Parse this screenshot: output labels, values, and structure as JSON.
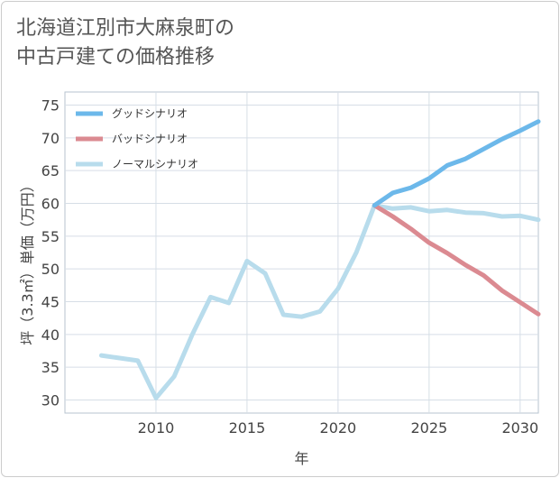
{
  "chart_data": {
    "type": "line",
    "title_lines": [
      "北海道江別市大麻泉町の",
      "中古戸建ての価格推移"
    ],
    "xlabel": "年",
    "ylabel": "坪（3.3㎡）単価（万円）",
    "xlim": [
      2005,
      2031
    ],
    "ylim": [
      28,
      77
    ],
    "xticks": [
      2010,
      2015,
      2020,
      2025,
      2030
    ],
    "yticks": [
      30,
      35,
      40,
      45,
      50,
      55,
      60,
      65,
      70,
      75
    ],
    "legend_position": "top-left",
    "series": [
      {
        "name": "グッドシナリオ",
        "color": "#6cb8ea",
        "x": [
          2022,
          2023,
          2024,
          2025,
          2026,
          2027,
          2028,
          2029,
          2030,
          2031
        ],
        "y": [
          59.7,
          61.6,
          62.4,
          63.8,
          65.8,
          66.8,
          68.3,
          69.8,
          71.1,
          72.5
        ]
      },
      {
        "name": "バッドシナリオ",
        "color": "#db8a91",
        "x": [
          2022,
          2023,
          2024,
          2025,
          2026,
          2027,
          2028,
          2029,
          2030,
          2031
        ],
        "y": [
          59.7,
          58.0,
          56.1,
          54.0,
          52.4,
          50.6,
          49.0,
          46.7,
          44.9,
          43.1
        ]
      },
      {
        "name": "ノーマルシナリオ",
        "color": "#b8dcec",
        "x": [
          2007,
          2008,
          2009,
          2010,
          2011,
          2012,
          2013,
          2014,
          2015,
          2016,
          2017,
          2018,
          2019,
          2020,
          2021,
          2022,
          2023,
          2024,
          2025,
          2026,
          2027,
          2028,
          2029,
          2030,
          2031
        ],
        "y": [
          36.8,
          36.4,
          36.0,
          30.3,
          33.6,
          40.0,
          45.7,
          44.8,
          51.2,
          49.3,
          43.0,
          42.7,
          43.5,
          47.0,
          52.5,
          59.7,
          59.2,
          59.4,
          58.8,
          59.0,
          58.6,
          58.5,
          58.0,
          58.1,
          57.5
        ]
      }
    ]
  }
}
